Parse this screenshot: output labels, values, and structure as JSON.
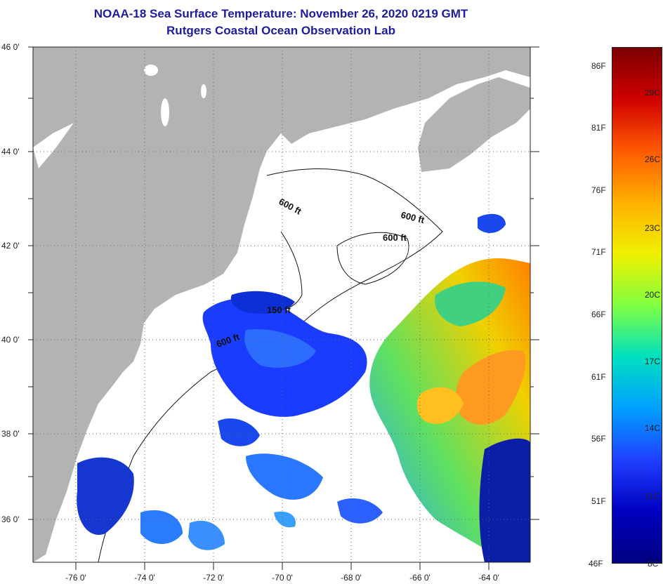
{
  "title": {
    "line1": "NOAA-18 Sea Surface Temperature:  November 26, 2020 0219 GMT",
    "line2": "Rutgers Coastal Ocean Observation Lab"
  },
  "axes": {
    "lat_labels": [
      "46 0'",
      "44 0'",
      "42 0'",
      "40 0'",
      "38 0'",
      "36 0'"
    ],
    "lon_labels": [
      "-76 0'",
      "-74 0'",
      "-72 0'",
      "-70 0'",
      "-68 0'",
      "-66 0'",
      "-64 0'"
    ]
  },
  "isobaths": [
    "600 ft",
    "600 ft",
    "600 ft",
    "150 ft",
    "600 ft"
  ],
  "colorbar": {
    "fahrenheit": [
      "86F",
      "81F",
      "76F",
      "71F",
      "66F",
      "61F",
      "56F",
      "51F",
      "46F"
    ],
    "celsius": [
      "29C",
      "26C",
      "23C",
      "20C",
      "17C",
      "14C",
      "11C",
      "8C"
    ],
    "colors": [
      "#7a0000",
      "#d00000",
      "#ff5a00",
      "#ffb000",
      "#f0f000",
      "#80ff40",
      "#00e0c0",
      "#00a0ff",
      "#2040ff",
      "#0000c0",
      "#000080"
    ]
  },
  "colors": {
    "land": "#b3b3b3",
    "ocean": "#ffffff",
    "title": "#1c1c9c"
  }
}
